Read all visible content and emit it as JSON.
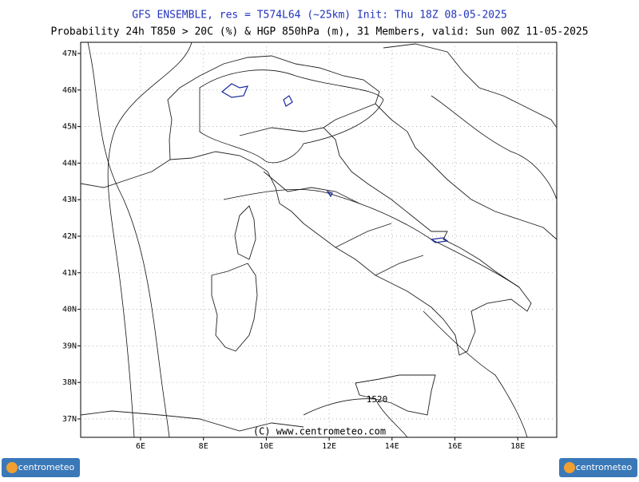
{
  "header": {
    "title": "GFS ENSEMBLE, res = T574L64 (~25km)   Init: Thu 18Z 08-05-2025",
    "subtitle": "Probability 24h T850 > 20C (%) & HGP 850hPa (m), 31 Members, valid: Sun 00Z 11-05-2025"
  },
  "map": {
    "lat_labels": [
      "47N",
      "46N",
      "45N",
      "44N",
      "43N",
      "42N",
      "41N",
      "40N",
      "39N",
      "38N",
      "37N"
    ],
    "lon_labels": [
      "6E",
      "8E",
      "10E",
      "12E",
      "14E",
      "16E",
      "18E"
    ],
    "contour_label": "1520",
    "copyright": "(C) www.centrometeo.com"
  },
  "footer": {
    "logo_left": "centrometeo",
    "logo_right": "centrometeo"
  }
}
